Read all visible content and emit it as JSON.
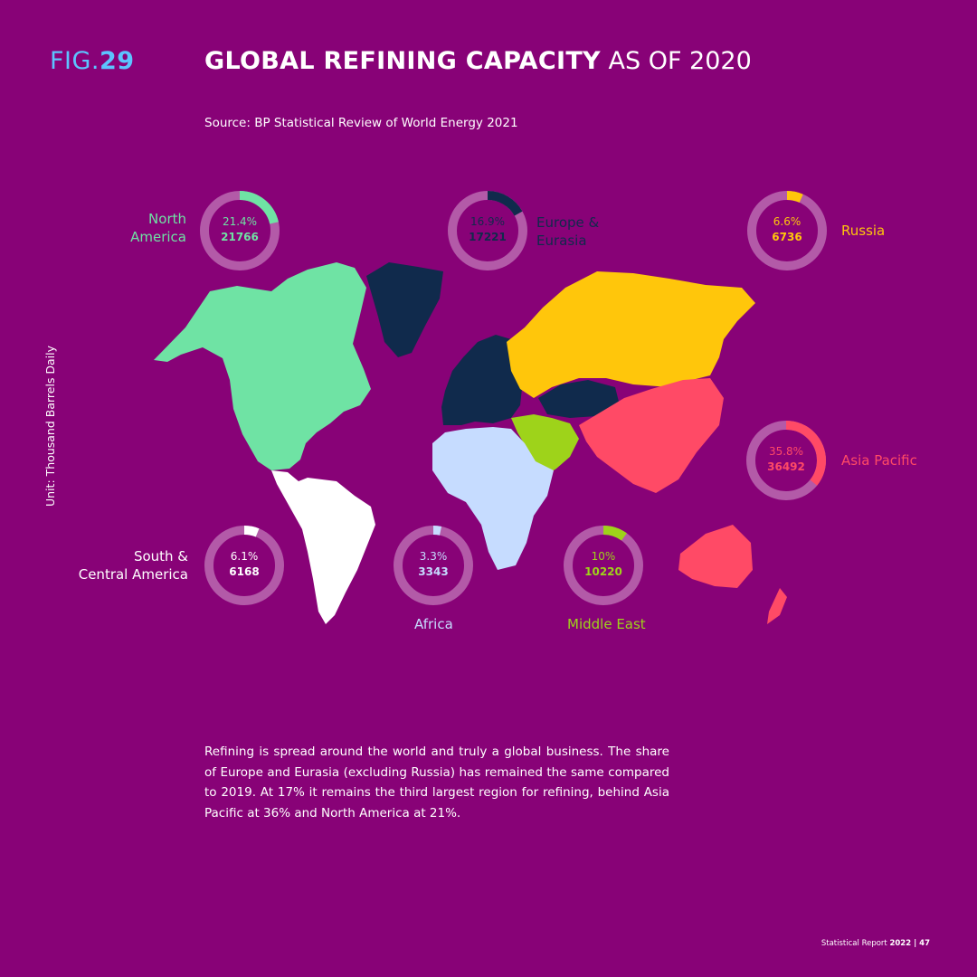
{
  "header": {
    "fig_prefix": "FIG.",
    "fig_number": "29",
    "title_bold": "GLOBAL REFINING CAPACITY",
    "title_rest": " AS OF 2020",
    "source": "Source: BP Statistical Review of World Energy 2021",
    "unit": "Unit: Thousand Barrels Daily"
  },
  "colors": {
    "background": "#880277",
    "ring_track": "#b35aa8",
    "north_america": "#6fe3a4",
    "europe_eurasia": "#102a4c",
    "russia": "#ffc60b",
    "asia_pacific": "#ff4a66",
    "middle_east": "#9ed31a",
    "africa": "#c6dcff",
    "south_central_america": "#ffffff"
  },
  "chart_data": {
    "type": "map",
    "title": "GLOBAL REFINING CAPACITY AS OF 2020",
    "unit": "Thousand Barrels Daily",
    "regions": [
      {
        "id": "north_america",
        "name": "North America",
        "share_pct": 21.4,
        "share_label": "21.4%",
        "value": 21766
      },
      {
        "id": "europe_eurasia",
        "name": "Europe & Eurasia",
        "share_pct": 16.9,
        "share_label": "16.9%",
        "value": 17221
      },
      {
        "id": "russia",
        "name": "Russia",
        "share_pct": 6.6,
        "share_label": "6.6%",
        "value": 6736
      },
      {
        "id": "asia_pacific",
        "name": "Asia Pacific",
        "share_pct": 35.8,
        "share_label": "35.8%",
        "value": 36492
      },
      {
        "id": "south_central_america",
        "name": "South & Central America",
        "share_pct": 6.1,
        "share_label": "6.1%",
        "value": 6168
      },
      {
        "id": "africa",
        "name": "Africa",
        "share_pct": 3.3,
        "share_label": "3.3%",
        "value": 3343
      },
      {
        "id": "middle_east",
        "name": "Middle East",
        "share_pct": 10,
        "share_label": "10%",
        "value": 10220
      }
    ]
  },
  "labels": {
    "north_america": {
      "line1": "North",
      "line2": "America"
    },
    "europe_eurasia": {
      "line1": "Europe &",
      "line2": "Eurasia"
    },
    "russia": {
      "line1": "Russia"
    },
    "asia_pacific": {
      "line1": "Asia Pacific"
    },
    "south_central_america": {
      "line1": "South &",
      "line2": "Central America"
    },
    "africa": {
      "line1": "Africa"
    },
    "middle_east": {
      "line1": "Middle East"
    }
  },
  "description": "Refining is spread around the world and truly a global business. The share of Europe and Eurasia (excluding Russia) has remained the same compared to 2019. At 17% it remains the third largest region for refining, behind Asia Pacific at 36% and North America at 21%.",
  "footer": {
    "text": "Statistical Report ",
    "year": "2022",
    "page": " | 47"
  }
}
